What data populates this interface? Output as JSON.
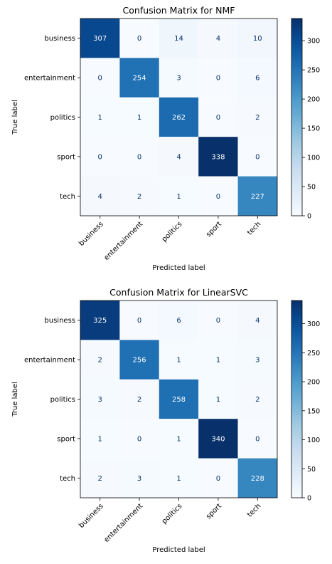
{
  "chart_data": [
    {
      "type": "heatmap",
      "title": "Confusion Matrix for NMF",
      "xlabel": "Predicted label",
      "ylabel": "True label",
      "x_categories": [
        "business",
        "entertainment",
        "politics",
        "sport",
        "tech"
      ],
      "y_categories": [
        "business",
        "entertainment",
        "politics",
        "sport",
        "tech"
      ],
      "values": [
        [
          307,
          0,
          14,
          4,
          10
        ],
        [
          0,
          254,
          3,
          0,
          6
        ],
        [
          1,
          1,
          262,
          0,
          2
        ],
        [
          0,
          0,
          4,
          338,
          0
        ],
        [
          4,
          2,
          1,
          0,
          227
        ]
      ],
      "colormap": "Blues",
      "colorbar": {
        "min": 0,
        "max": 338,
        "ticks": [
          0,
          50,
          100,
          150,
          200,
          250,
          300
        ]
      }
    },
    {
      "type": "heatmap",
      "title": "Confusion Matrix for LinearSVC",
      "xlabel": "Predicted label",
      "ylabel": "True label",
      "x_categories": [
        "business",
        "entertainment",
        "politics",
        "sport",
        "tech"
      ],
      "y_categories": [
        "business",
        "entertainment",
        "politics",
        "sport",
        "tech"
      ],
      "values": [
        [
          325,
          0,
          6,
          0,
          4
        ],
        [
          2,
          256,
          1,
          1,
          3
        ],
        [
          3,
          2,
          258,
          1,
          2
        ],
        [
          1,
          0,
          1,
          340,
          0
        ],
        [
          2,
          3,
          1,
          0,
          228
        ]
      ],
      "colormap": "Blues",
      "colorbar": {
        "min": 0,
        "max": 340,
        "ticks": [
          0,
          50,
          100,
          150,
          200,
          250,
          300
        ]
      }
    }
  ],
  "colors": {
    "low": "#f7fbff",
    "high": "#08306b",
    "text_dark": "#08306b",
    "text_light": "#ffffff"
  }
}
